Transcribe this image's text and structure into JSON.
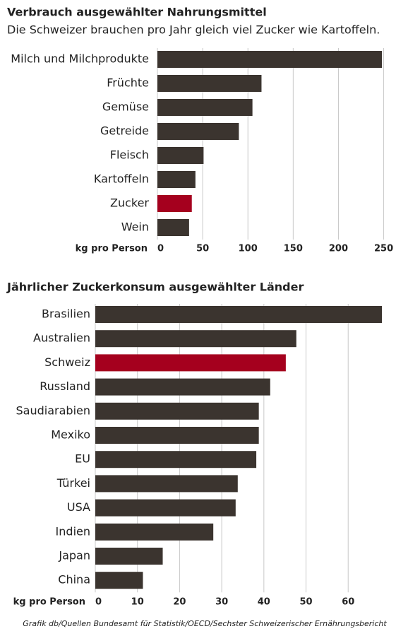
{
  "chart_data": [
    {
      "type": "bar",
      "orientation": "horizontal",
      "title": "Verbrauch ausgewählter Nahrungsmittel",
      "subtitle": "Die Schweizer brauchen pro Jahr gleich viel Zucker wie Kartoffeln.",
      "x_label": "kg pro Person",
      "categories": [
        "Milch und Milchprodukte",
        "Früchte",
        "Gemüse",
        "Getreide",
        "Fleisch",
        "Kartoffeln",
        "Zucker",
        "Wein"
      ],
      "values": [
        248,
        115,
        105,
        90,
        51,
        42,
        38,
        35
      ],
      "colors": [
        "#3b342f",
        "#3b342f",
        "#3b342f",
        "#3b342f",
        "#3b342f",
        "#3b342f",
        "#a5001e",
        "#3b342f"
      ],
      "xlim": [
        0,
        248
      ],
      "xticks": [
        0,
        50,
        100,
        150,
        200,
        250
      ],
      "grid": true
    },
    {
      "type": "bar",
      "orientation": "horizontal",
      "title": "Jährlicher Zuckerkonsum ausgewählter Länder",
      "x_label": "kg pro Person",
      "categories": [
        "Brasilien",
        "Australien",
        "Schweiz",
        "Russland",
        "Saudiarabien",
        "Mexiko",
        "EU",
        "Türkei",
        "USA",
        "Indien",
        "Japan",
        "China"
      ],
      "values": [
        68,
        47.7,
        45.2,
        41.5,
        38.8,
        38.8,
        38.2,
        33.8,
        33.3,
        28,
        16,
        11.3
      ],
      "colors": [
        "#3b342f",
        "#3b342f",
        "#a5001e",
        "#3b342f",
        "#3b342f",
        "#3b342f",
        "#3b342f",
        "#3b342f",
        "#3b342f",
        "#3b342f",
        "#3b342f",
        "#3b342f"
      ],
      "xlim": [
        0,
        68
      ],
      "xticks": [
        0,
        10,
        20,
        30,
        40,
        50,
        60
      ],
      "grid": true
    }
  ],
  "source": "Grafik db/Quellen Bundesamt für Statistik/OECD/Sechster Schweizerischer Ernährungsbericht"
}
